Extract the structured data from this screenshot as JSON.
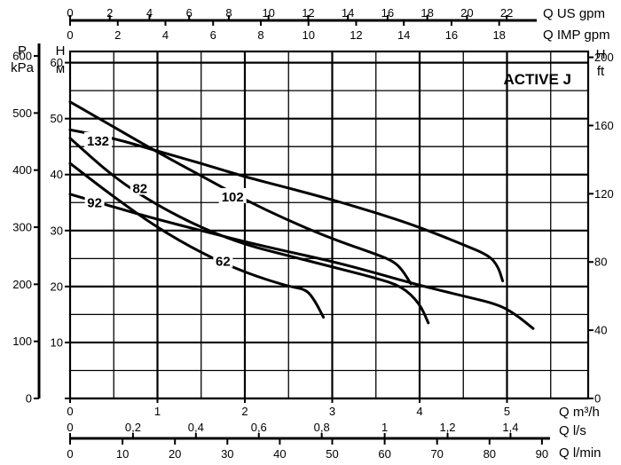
{
  "chart_data": {
    "type": "line",
    "title": "ACTIVE J",
    "xlabel": "Q m³/h",
    "ylabel": "H m",
    "xlim": [
      0,
      6.0
    ],
    "ylim": [
      0,
      62
    ],
    "grid": true,
    "left_axes": {
      "pressure": {
        "label_top": "P",
        "label_unit": "kPa",
        "ticks": [
          0,
          100,
          200,
          300,
          400,
          500,
          600
        ]
      },
      "head_m": {
        "label_top": "H",
        "label_unit": "м",
        "ticks": [
          0,
          10,
          20,
          30,
          40,
          50,
          60
        ]
      }
    },
    "right_axis": {
      "label_top": "H",
      "label_unit": "ft",
      "ticks": [
        0,
        40,
        80,
        120,
        160,
        200
      ]
    },
    "x_axes": {
      "m3h": {
        "unit": "Q m³/h",
        "ticks": [
          0,
          1,
          2,
          3,
          4,
          5
        ]
      },
      "ls": {
        "unit": "Q l/s",
        "ticks": [
          "0",
          "0,2",
          "0,4",
          "0,6",
          "0,8",
          "1",
          "1,2",
          "1,4"
        ],
        "values": [
          0,
          0.2,
          0.4,
          0.6,
          0.8,
          1.0,
          1.2,
          1.4
        ]
      },
      "lmin": {
        "unit": "Q l/min",
        "ticks": [
          0,
          10,
          20,
          30,
          40,
          50,
          60,
          70,
          80,
          90
        ]
      },
      "us_gpm": {
        "unit": "Q US gpm",
        "ticks": [
          0,
          2,
          4,
          6,
          8,
          10,
          12,
          14,
          16,
          18,
          20,
          22
        ]
      },
      "imp_gpm": {
        "unit": "Q IMP gpm",
        "ticks": [
          0,
          2,
          4,
          6,
          8,
          10,
          12,
          14,
          16,
          18
        ]
      }
    },
    "series": [
      {
        "name": "132",
        "x": [
          0,
          0.5,
          1.0,
          1.5,
          2.0,
          2.5,
          3.0,
          3.5,
          4.0,
          4.5,
          4.8,
          4.9,
          4.95
        ],
        "y": [
          48,
          46.5,
          44.2,
          42,
          39.6,
          37.6,
          35.5,
          33.2,
          30.6,
          27.5,
          25.5,
          23.5,
          21
        ]
      },
      {
        "name": "102",
        "x": [
          0,
          0.5,
          1.0,
          1.5,
          2.0,
          2.5,
          3.0,
          3.5,
          3.7,
          3.8,
          3.9
        ],
        "y": [
          53,
          48.5,
          44,
          39.8,
          35.5,
          31.8,
          28.5,
          25.8,
          24.5,
          23,
          20.5
        ]
      },
      {
        "name": "82",
        "x": [
          0,
          0.5,
          1.0,
          1.5,
          2.0,
          2.5,
          3.0,
          3.5,
          3.8,
          4.0,
          4.1
        ],
        "y": [
          46.5,
          39.5,
          34.5,
          30.5,
          27.5,
          25.5,
          23.5,
          21.5,
          20,
          17,
          13.5
        ]
      },
      {
        "name": "92",
        "x": [
          0,
          0.5,
          1.0,
          1.5,
          2.0,
          2.5,
          3.0,
          3.5,
          4.0,
          4.5,
          4.9,
          5.1,
          5.3
        ],
        "y": [
          36.5,
          34.2,
          32,
          30,
          28,
          26.2,
          24.5,
          22.4,
          20.2,
          18.3,
          16.8,
          15,
          12.5
        ]
      },
      {
        "name": "62",
        "x": [
          0,
          0.5,
          1.0,
          1.5,
          2.0,
          2.5,
          2.7,
          2.8,
          2.9
        ],
        "y": [
          42,
          36,
          30.5,
          26,
          22.5,
          20,
          19.5,
          17.5,
          14.5
        ]
      }
    ],
    "curve_labels": [
      {
        "text": "132",
        "x": 0.32,
        "y": 46
      },
      {
        "text": "102",
        "x": 1.86,
        "y": 36
      },
      {
        "text": "82",
        "x": 0.8,
        "y": 37.5
      },
      {
        "text": "92",
        "x": 0.28,
        "y": 35
      },
      {
        "text": "62",
        "x": 1.75,
        "y": 24.5
      }
    ]
  }
}
